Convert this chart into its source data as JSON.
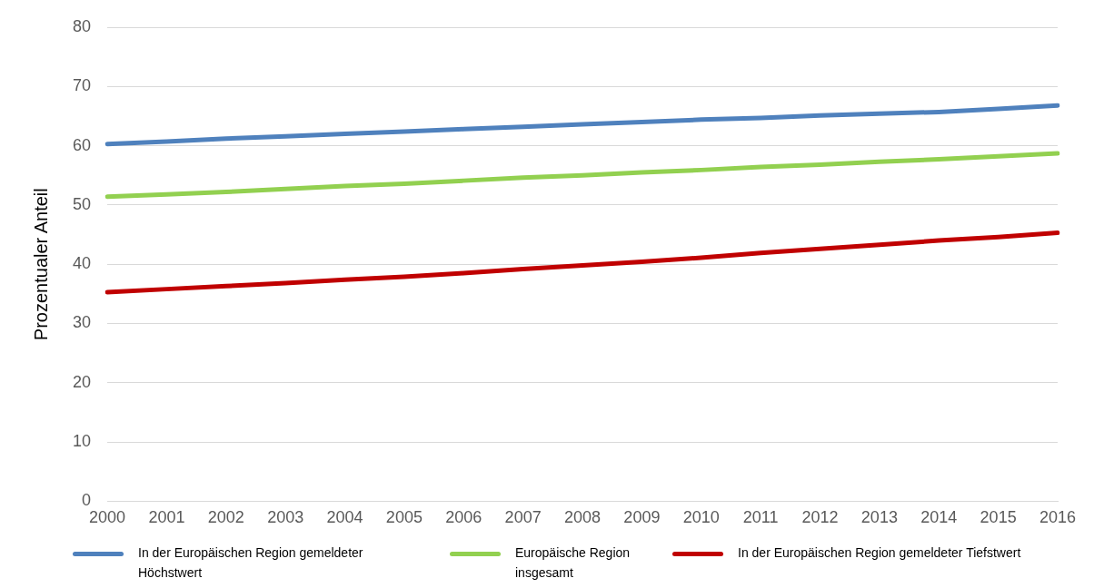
{
  "chart_data": {
    "type": "line",
    "ylabel": "Prozentualer Anteil",
    "categories": [
      "2000",
      "2001",
      "2002",
      "2003",
      "2004",
      "2005",
      "2006",
      "2007",
      "2008",
      "2009",
      "2010",
      "2011",
      "2012",
      "2013",
      "2014",
      "2015",
      "2016"
    ],
    "series": [
      {
        "name": "In der Europäischen Region gemeldeter Höchstwert",
        "color": "#4f81bd",
        "values": [
          60.3,
          60.7,
          61.2,
          61.6,
          62.0,
          62.4,
          62.8,
          63.2,
          63.6,
          64.0,
          64.4,
          64.7,
          65.1,
          65.4,
          65.7,
          66.2,
          66.8
        ]
      },
      {
        "name": "Europäische Region insgesamt",
        "color": "#92d050",
        "values": [
          51.4,
          51.8,
          52.2,
          52.7,
          53.2,
          53.6,
          54.1,
          54.6,
          55.0,
          55.5,
          55.9,
          56.4,
          56.8,
          57.3,
          57.7,
          58.2,
          58.7
        ]
      },
      {
        "name": "In der Europäischen Region gemeldeter Tiefstwert",
        "color": "#c00000",
        "values": [
          35.3,
          35.8,
          36.3,
          36.8,
          37.4,
          37.9,
          38.5,
          39.2,
          39.8,
          40.4,
          41.1,
          41.9,
          42.6,
          43.3,
          44.0,
          44.6,
          45.3
        ]
      }
    ],
    "ylim": [
      0,
      80
    ],
    "yticks": [
      0,
      10,
      20,
      30,
      40,
      50,
      60,
      70,
      80
    ],
    "grid": "y",
    "legend": "bottom",
    "marker": "none",
    "line_style": "solid"
  }
}
